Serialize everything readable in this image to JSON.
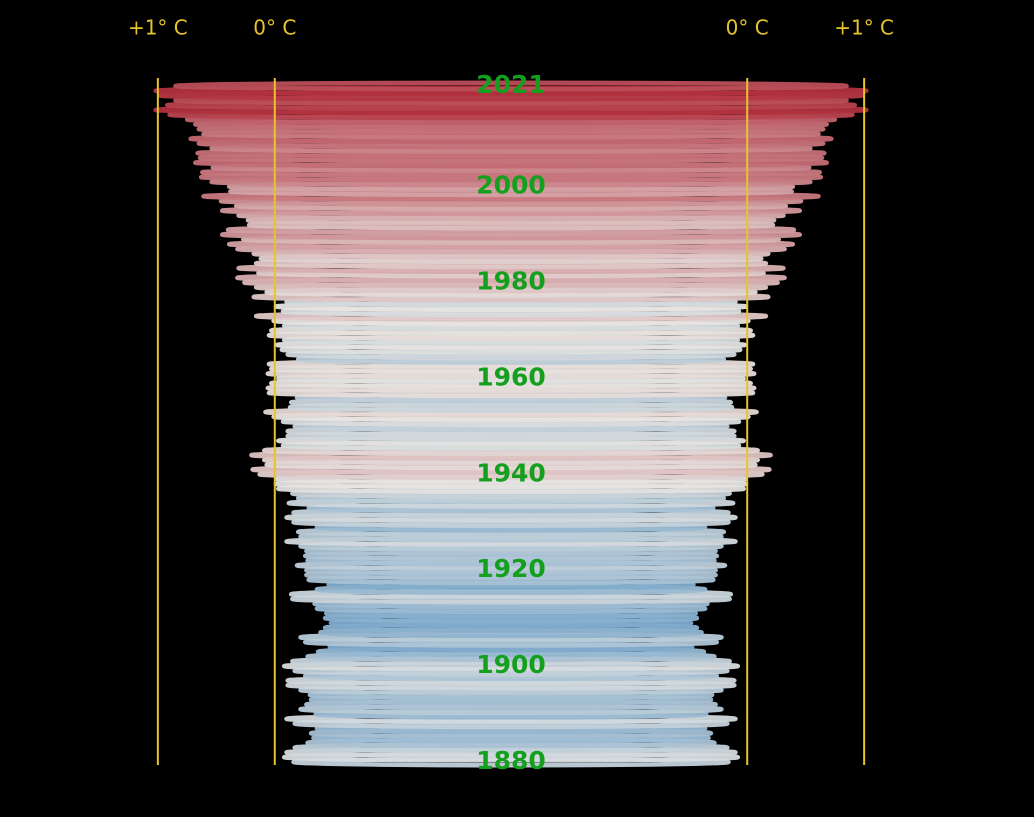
{
  "chart_data": {
    "type": "tornado",
    "xticks": [
      {
        "value": 1,
        "label": "+1° C"
      },
      {
        "value": 0,
        "label": "0° C"
      }
    ],
    "xlim": [
      -2.02,
      2.35
    ],
    "ylim": [
      1880,
      2021
    ],
    "yticks": [
      1880,
      1900,
      1920,
      1940,
      1960,
      1980,
      2000,
      2021
    ],
    "color_scale": [
      "#7eaacd",
      "#e9e6e2",
      "#b2303e"
    ],
    "tick_color": "#e6c42c",
    "year_label_color": "#14a01e",
    "x": [
      1880,
      1881,
      1882,
      1883,
      1884,
      1885,
      1886,
      1887,
      1888,
      1889,
      1890,
      1891,
      1892,
      1893,
      1894,
      1895,
      1896,
      1897,
      1898,
      1899,
      1900,
      1901,
      1902,
      1903,
      1904,
      1905,
      1906,
      1907,
      1908,
      1909,
      1910,
      1911,
      1912,
      1913,
      1914,
      1915,
      1916,
      1917,
      1918,
      1919,
      1920,
      1921,
      1922,
      1923,
      1924,
      1925,
      1926,
      1927,
      1928,
      1929,
      1930,
      1931,
      1932,
      1933,
      1934,
      1935,
      1936,
      1937,
      1938,
      1939,
      1940,
      1941,
      1942,
      1943,
      1944,
      1945,
      1946,
      1947,
      1948,
      1949,
      1950,
      1951,
      1952,
      1953,
      1954,
      1955,
      1956,
      1957,
      1958,
      1959,
      1960,
      1961,
      1962,
      1963,
      1964,
      1965,
      1966,
      1967,
      1968,
      1969,
      1970,
      1971,
      1972,
      1973,
      1974,
      1975,
      1976,
      1977,
      1978,
      1979,
      1980,
      1981,
      1982,
      1983,
      1984,
      1985,
      1986,
      1987,
      1988,
      1989,
      1990,
      1991,
      1992,
      1993,
      1994,
      1995,
      1996,
      1997,
      1998,
      1999,
      2000,
      2001,
      2002,
      2003,
      2004,
      2005,
      2006,
      2007,
      2008,
      2009,
      2010,
      2011,
      2012,
      2013,
      2014,
      2015,
      2016,
      2017,
      2018,
      2019,
      2020,
      2021
    ],
    "values": [
      -0.16,
      -0.08,
      -0.1,
      -0.17,
      -0.28,
      -0.33,
      -0.31,
      -0.36,
      -0.17,
      -0.1,
      -0.35,
      -0.22,
      -0.27,
      -0.31,
      -0.3,
      -0.22,
      -0.11,
      -0.11,
      -0.26,
      -0.17,
      -0.08,
      -0.15,
      -0.28,
      -0.37,
      -0.47,
      -0.26,
      -0.22,
      -0.39,
      -0.43,
      -0.48,
      -0.43,
      -0.44,
      -0.36,
      -0.34,
      -0.15,
      -0.14,
      -0.36,
      -0.46,
      -0.29,
      -0.27,
      -0.27,
      -0.19,
      -0.28,
      -0.26,
      -0.27,
      -0.22,
      -0.1,
      -0.22,
      -0.2,
      -0.36,
      -0.16,
      -0.1,
      -0.16,
      -0.29,
      -0.12,
      -0.2,
      -0.15,
      -0.03,
      -0.01,
      -0.02,
      0.13,
      0.19,
      0.07,
      0.09,
      0.2,
      0.09,
      -0.07,
      -0.03,
      -0.11,
      -0.11,
      -0.17,
      -0.07,
      0.01,
      0.08,
      -0.13,
      -0.14,
      -0.19,
      0.05,
      0.06,
      0.03,
      -0.03,
      0.06,
      0.03,
      0.05,
      -0.2,
      -0.11,
      -0.06,
      -0.02,
      -0.08,
      0.05,
      0.03,
      -0.08,
      0.01,
      0.16,
      -0.07,
      -0.01,
      -0.1,
      0.18,
      0.07,
      0.16,
      0.26,
      0.32,
      0.14,
      0.31,
      0.16,
      0.12,
      0.18,
      0.32,
      0.39,
      0.27,
      0.45,
      0.4,
      0.22,
      0.23,
      0.31,
      0.45,
      0.33,
      0.46,
      0.61,
      0.38,
      0.39,
      0.54,
      0.63,
      0.62,
      0.53,
      0.68,
      0.64,
      0.66,
      0.54,
      0.65,
      0.72,
      0.61,
      0.65,
      0.68,
      0.75,
      0.9,
      1.02,
      0.92,
      0.85,
      0.98,
      1.02,
      0.85
    ]
  }
}
